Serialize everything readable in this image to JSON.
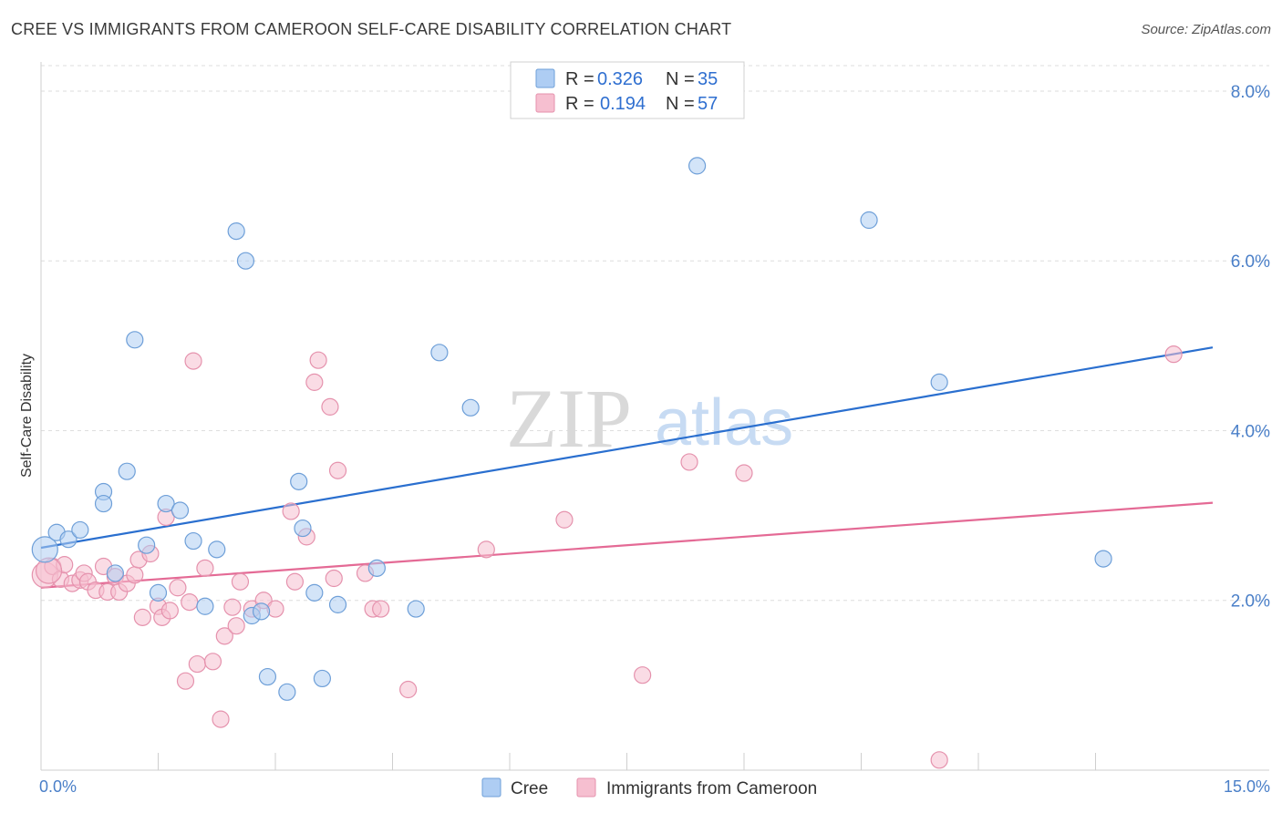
{
  "header": {
    "title": "CREE VS IMMIGRANTS FROM CAMEROON SELF-CARE DISABILITY CORRELATION CHART",
    "source": "Source: ZipAtlas.com"
  },
  "legend_top": {
    "rows": [
      {
        "r_label": "R = ",
        "r_value": "0.326",
        "n_label": "N = ",
        "n_value": "35"
      },
      {
        "r_label": "R = ",
        "r_value": "0.194",
        "n_label": "N = ",
        "n_value": "57"
      }
    ]
  },
  "watermark": {
    "zip": "ZIP",
    "atlas": "atlas"
  },
  "colors": {
    "cree_fill": "#aecdf3",
    "cree_stroke": "#6e9fd8",
    "cree_line": "#2a6fcf",
    "cam_fill": "#f6bfd0",
    "cam_stroke": "#e592ad",
    "cam_line": "#e46a95",
    "axis_text": "#4a7fc8",
    "grid": "#dedede"
  },
  "chart_data": {
    "type": "scatter",
    "title": "CREE VS IMMIGRANTS FROM CAMEROON SELF-CARE DISABILITY CORRELATION CHART",
    "xlabel": "",
    "ylabel": "Self-Care Disability",
    "xlim": [
      0,
      15
    ],
    "ylim": [
      0,
      8.3
    ],
    "x_tick_labels": [
      "0.0%",
      "15.0%"
    ],
    "y_ticks": [
      2,
      4,
      6,
      8
    ],
    "y_tick_labels": [
      "2.0%",
      "4.0%",
      "6.0%",
      "8.0%"
    ],
    "grid": true,
    "legend_position": "bottom-center",
    "series": [
      {
        "name": "Cree",
        "R": 0.326,
        "N": 35,
        "trend": {
          "x": [
            0,
            15
          ],
          "y": [
            2.62,
            4.98
          ]
        },
        "points": [
          [
            0.05,
            2.6
          ],
          [
            0.2,
            2.8
          ],
          [
            0.35,
            2.72
          ],
          [
            0.5,
            2.83
          ],
          [
            0.8,
            3.28
          ],
          [
            0.8,
            3.14
          ],
          [
            0.95,
            2.32
          ],
          [
            1.1,
            3.52
          ],
          [
            1.2,
            5.07
          ],
          [
            1.35,
            2.65
          ],
          [
            1.5,
            2.09
          ],
          [
            1.6,
            3.14
          ],
          [
            1.78,
            3.06
          ],
          [
            1.95,
            2.7
          ],
          [
            2.1,
            1.93
          ],
          [
            2.25,
            2.6
          ],
          [
            2.5,
            6.35
          ],
          [
            2.62,
            6.0
          ],
          [
            2.7,
            1.82
          ],
          [
            2.82,
            1.87
          ],
          [
            2.9,
            1.1
          ],
          [
            3.15,
            0.92
          ],
          [
            3.3,
            3.4
          ],
          [
            3.35,
            2.85
          ],
          [
            3.5,
            2.09
          ],
          [
            3.6,
            1.08
          ],
          [
            3.8,
            1.95
          ],
          [
            4.3,
            2.38
          ],
          [
            4.8,
            1.9
          ],
          [
            5.1,
            4.92
          ],
          [
            5.5,
            4.27
          ],
          [
            8.4,
            7.12
          ],
          [
            10.6,
            6.48
          ],
          [
            11.5,
            4.57
          ],
          [
            13.6,
            2.49
          ]
        ]
      },
      {
        "name": "Immigrants from Cameroon",
        "R": 0.194,
        "N": 57,
        "trend": {
          "x": [
            0,
            15
          ],
          "y": [
            2.15,
            3.15
          ]
        },
        "points": [
          [
            0.05,
            2.3
          ],
          [
            0.15,
            2.4
          ],
          [
            0.25,
            2.25
          ],
          [
            0.3,
            2.42
          ],
          [
            0.4,
            2.2
          ],
          [
            0.5,
            2.24
          ],
          [
            0.55,
            2.32
          ],
          [
            0.6,
            2.22
          ],
          [
            0.7,
            2.12
          ],
          [
            0.8,
            2.4
          ],
          [
            0.85,
            2.1
          ],
          [
            0.95,
            2.28
          ],
          [
            1.0,
            2.1
          ],
          [
            1.1,
            2.2
          ],
          [
            1.2,
            2.3
          ],
          [
            1.25,
            2.48
          ],
          [
            1.3,
            1.8
          ],
          [
            1.4,
            2.55
          ],
          [
            1.5,
            1.93
          ],
          [
            1.55,
            1.8
          ],
          [
            1.6,
            2.98
          ],
          [
            1.65,
            1.88
          ],
          [
            1.75,
            2.15
          ],
          [
            1.85,
            1.05
          ],
          [
            1.9,
            1.98
          ],
          [
            1.95,
            4.82
          ],
          [
            2.0,
            1.25
          ],
          [
            2.1,
            2.38
          ],
          [
            2.2,
            1.28
          ],
          [
            2.3,
            0.6
          ],
          [
            2.35,
            1.58
          ],
          [
            2.45,
            1.92
          ],
          [
            2.5,
            1.7
          ],
          [
            2.55,
            2.22
          ],
          [
            2.7,
            1.9
          ],
          [
            2.85,
            2.0
          ],
          [
            3.0,
            1.9
          ],
          [
            3.2,
            3.05
          ],
          [
            3.25,
            2.22
          ],
          [
            3.4,
            2.75
          ],
          [
            3.5,
            4.57
          ],
          [
            3.55,
            4.83
          ],
          [
            3.7,
            4.28
          ],
          [
            3.75,
            2.26
          ],
          [
            3.8,
            3.53
          ],
          [
            4.15,
            2.32
          ],
          [
            4.25,
            1.9
          ],
          [
            4.35,
            1.9
          ],
          [
            4.7,
            0.95
          ],
          [
            5.7,
            2.6
          ],
          [
            6.7,
            2.95
          ],
          [
            7.7,
            1.12
          ],
          [
            8.3,
            3.63
          ],
          [
            9.0,
            3.5
          ],
          [
            11.5,
            0.12
          ],
          [
            14.5,
            4.9
          ],
          [
            0.1,
            2.35
          ]
        ]
      }
    ]
  }
}
